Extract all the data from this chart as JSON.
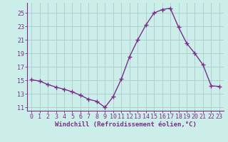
{
  "x": [
    0,
    1,
    2,
    3,
    4,
    5,
    6,
    7,
    8,
    9,
    10,
    11,
    12,
    13,
    14,
    15,
    16,
    17,
    18,
    19,
    20,
    21,
    22,
    23
  ],
  "y": [
    15.1,
    14.9,
    14.4,
    14.0,
    13.7,
    13.3,
    12.8,
    12.2,
    11.9,
    11.0,
    12.6,
    15.2,
    18.5,
    21.0,
    23.2,
    25.0,
    25.5,
    25.7,
    22.9,
    20.5,
    19.0,
    17.3,
    14.2,
    14.1
  ],
  "line_color": "#7b2d8b",
  "marker": "+",
  "marker_size": 4,
  "marker_linewidth": 1.0,
  "linewidth": 1.0,
  "bg_color": "#cceee8",
  "grid_color": "#aacccc",
  "xlabel": "Windchill (Refroidissement éolien,°C)",
  "xlim": [
    -0.5,
    23.5
  ],
  "ylim": [
    10.5,
    26.5
  ],
  "yticks": [
    11,
    13,
    15,
    17,
    19,
    21,
    23,
    25
  ],
  "xticks": [
    0,
    1,
    2,
    3,
    4,
    5,
    6,
    7,
    8,
    9,
    10,
    11,
    12,
    13,
    14,
    15,
    16,
    17,
    18,
    19,
    20,
    21,
    22,
    23
  ],
  "tick_color": "#7b2d8b",
  "xlabel_fontsize": 6.5,
  "tick_fontsize": 6.0,
  "spine_color": "#7b2d8b"
}
